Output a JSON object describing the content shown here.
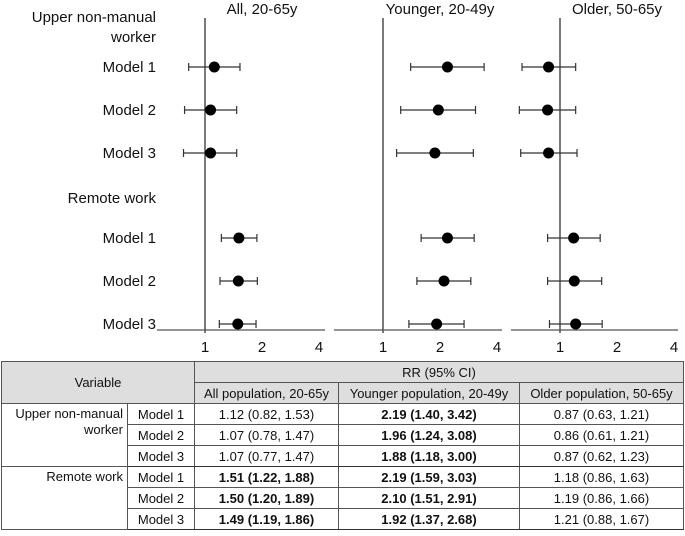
{
  "chart_data": {
    "type": "forest",
    "scale": "log2",
    "reference_line": 1,
    "x_ticks": [
      1,
      2,
      4
    ],
    "panels": [
      {
        "title": "All, 20-65y",
        "key": "all"
      },
      {
        "title": "Younger, 20-49y",
        "key": "younger"
      },
      {
        "title": "Older, 50-65y",
        "key": "older"
      }
    ],
    "groups": [
      {
        "label": "Upper non-manual worker",
        "label_lines": [
          "Upper non-manual",
          "worker"
        ],
        "rows": [
          {
            "label": "Model 1",
            "all": {
              "rr": 1.12,
              "lo": 0.82,
              "hi": 1.53
            },
            "younger": {
              "rr": 2.19,
              "lo": 1.4,
              "hi": 3.42
            },
            "older": {
              "rr": 0.87,
              "lo": 0.63,
              "hi": 1.21
            }
          },
          {
            "label": "Model 2",
            "all": {
              "rr": 1.07,
              "lo": 0.78,
              "hi": 1.47
            },
            "younger": {
              "rr": 1.96,
              "lo": 1.24,
              "hi": 3.08
            },
            "older": {
              "rr": 0.86,
              "lo": 0.61,
              "hi": 1.21
            }
          },
          {
            "label": "Model 3",
            "all": {
              "rr": 1.07,
              "lo": 0.77,
              "hi": 1.47
            },
            "younger": {
              "rr": 1.88,
              "lo": 1.18,
              "hi": 3.0
            },
            "older": {
              "rr": 0.87,
              "lo": 0.62,
              "hi": 1.23
            }
          }
        ]
      },
      {
        "label": "Remote work",
        "label_lines": [
          "Remote work"
        ],
        "rows": [
          {
            "label": "Model 1",
            "all": {
              "rr": 1.51,
              "lo": 1.22,
              "hi": 1.88
            },
            "younger": {
              "rr": 2.19,
              "lo": 1.59,
              "hi": 3.03
            },
            "older": {
              "rr": 1.18,
              "lo": 0.86,
              "hi": 1.63
            }
          },
          {
            "label": "Model 2",
            "all": {
              "rr": 1.5,
              "lo": 1.2,
              "hi": 1.89
            },
            "younger": {
              "rr": 2.1,
              "lo": 1.51,
              "hi": 2.91
            },
            "older": {
              "rr": 1.19,
              "lo": 0.86,
              "hi": 1.66
            }
          },
          {
            "label": "Model 3",
            "all": {
              "rr": 1.49,
              "lo": 1.19,
              "hi": 1.86
            },
            "younger": {
              "rr": 1.92,
              "lo": 1.37,
              "hi": 2.68
            },
            "older": {
              "rr": 1.21,
              "lo": 0.88,
              "hi": 1.67
            }
          }
        ]
      }
    ],
    "xlabel": "",
    "ylabel": ""
  },
  "table": {
    "header": {
      "variable": "Variable",
      "rr": "RR (95% CI)",
      "cols": [
        "All population, 20-65y",
        "Younger population, 20-49y",
        "Older population, 50-65y"
      ]
    },
    "groups": [
      {
        "label": "Upper non-manual worker",
        "rows": [
          {
            "model": "Model 1",
            "cells": [
              {
                "text": "1.12 (0.82, 1.53)",
                "bold": false
              },
              {
                "text": "2.19 (1.40, 3.42)",
                "bold": true
              },
              {
                "text": "0.87 (0.63, 1.21)",
                "bold": false
              }
            ]
          },
          {
            "model": "Model 2",
            "cells": [
              {
                "text": "1.07 (0.78, 1.47)",
                "bold": false
              },
              {
                "text": "1.96 (1.24, 3.08)",
                "bold": true
              },
              {
                "text": "0.86 (0.61, 1.21)",
                "bold": false
              }
            ]
          },
          {
            "model": "Model 3",
            "cells": [
              {
                "text": "1.07 (0.77, 1.47)",
                "bold": false
              },
              {
                "text": "1.88 (1.18, 3.00)",
                "bold": true
              },
              {
                "text": "0.87 (0.62, 1.23)",
                "bold": false
              }
            ]
          }
        ]
      },
      {
        "label": "Remote work",
        "rows": [
          {
            "model": "Model 1",
            "cells": [
              {
                "text": "1.51 (1.22, 1.88)",
                "bold": true
              },
              {
                "text": "2.19 (1.59, 3.03)",
                "bold": true
              },
              {
                "text": "1.18 (0.86, 1.63)",
                "bold": false
              }
            ]
          },
          {
            "model": "Model 2",
            "cells": [
              {
                "text": "1.50 (1.20, 1.89)",
                "bold": true
              },
              {
                "text": "2.10 (1.51, 2.91)",
                "bold": true
              },
              {
                "text": "1.19 (0.86, 1.66)",
                "bold": false
              }
            ]
          },
          {
            "model": "Model 3",
            "cells": [
              {
                "text": "1.49 (1.19, 1.86)",
                "bold": true
              },
              {
                "text": "1.92 (1.37, 2.68)",
                "bold": true
              },
              {
                "text": "1.21 (0.88, 1.67)",
                "bold": false
              }
            ]
          }
        ]
      }
    ]
  }
}
